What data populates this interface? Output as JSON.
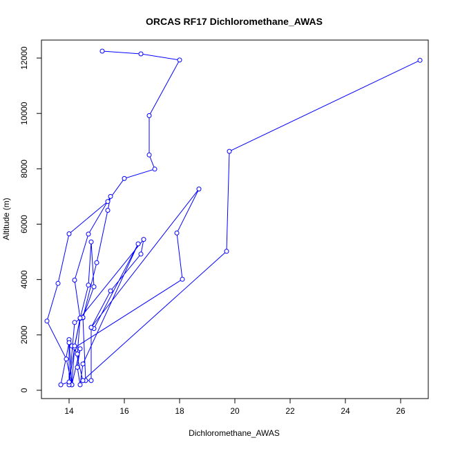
{
  "chart_data": {
    "type": "line",
    "title": "ORCAS RF17 Dichloromethane_AWAS",
    "xlabel": "Dichloromethane_AWAS",
    "ylabel": "Altitude (m)",
    "xlim": [
      13.0,
      27.0
    ],
    "ylim": [
      -300,
      12650
    ],
    "xticks": [
      14,
      16,
      18,
      20,
      22,
      24,
      26
    ],
    "yticks": [
      0,
      2000,
      4000,
      6000,
      8000,
      10000,
      12000
    ],
    "grid": false,
    "marker": "open-circle",
    "color": "#0000ff",
    "series": [
      {
        "points": [
          [
            15.2,
            12250
          ],
          [
            16.6,
            12150
          ],
          [
            18.0,
            11930
          ],
          [
            16.9,
            9920
          ],
          [
            16.9,
            8500
          ],
          [
            17.1,
            7990
          ],
          [
            16.0,
            7650
          ],
          [
            15.4,
            6820
          ],
          [
            14.0,
            5650
          ],
          [
            13.6,
            3860
          ],
          [
            13.2,
            2500
          ],
          [
            13.9,
            1130
          ],
          [
            14.1,
            200
          ],
          [
            14.2,
            1570
          ],
          [
            14.4,
            2600
          ],
          [
            14.2,
            3980
          ],
          [
            14.7,
            5640
          ],
          [
            15.5,
            7000
          ],
          [
            15.4,
            6500
          ],
          [
            15.0,
            4610
          ],
          [
            14.5,
            2620
          ],
          [
            14.6,
            350
          ],
          [
            14.8,
            350
          ],
          [
            14.8,
            2270
          ],
          [
            14.9,
            2230
          ],
          [
            16.5,
            5290
          ],
          [
            14.5,
            950
          ],
          [
            14.4,
            200
          ],
          [
            14.3,
            830
          ],
          [
            14.4,
            1500
          ],
          [
            14.1,
            200
          ],
          [
            14.0,
            1830
          ],
          [
            14.1,
            1600
          ],
          [
            14.3,
            1310
          ],
          [
            14.4,
            2600
          ],
          [
            14.7,
            3800
          ],
          [
            14.8,
            5360
          ],
          [
            14.9,
            3740
          ],
          [
            14.5,
            2630
          ],
          [
            14.2,
            2450
          ],
          [
            14.0,
            200
          ],
          [
            14.0,
            1720
          ],
          [
            13.7,
            200
          ],
          [
            14.0,
            300
          ],
          [
            14.2,
            1540
          ],
          [
            18.1,
            4010
          ],
          [
            17.9,
            5680
          ],
          [
            18.7,
            7270
          ],
          [
            14.8,
            2270
          ],
          [
            15.5,
            3590
          ],
          [
            16.6,
            4920
          ],
          [
            16.7,
            5450
          ],
          [
            14.4,
            2610
          ],
          [
            14.2,
            1600
          ],
          [
            14.5,
            350
          ],
          [
            19.7,
            5020
          ],
          [
            19.8,
            8630
          ],
          [
            26.7,
            11920
          ]
        ]
      }
    ]
  }
}
